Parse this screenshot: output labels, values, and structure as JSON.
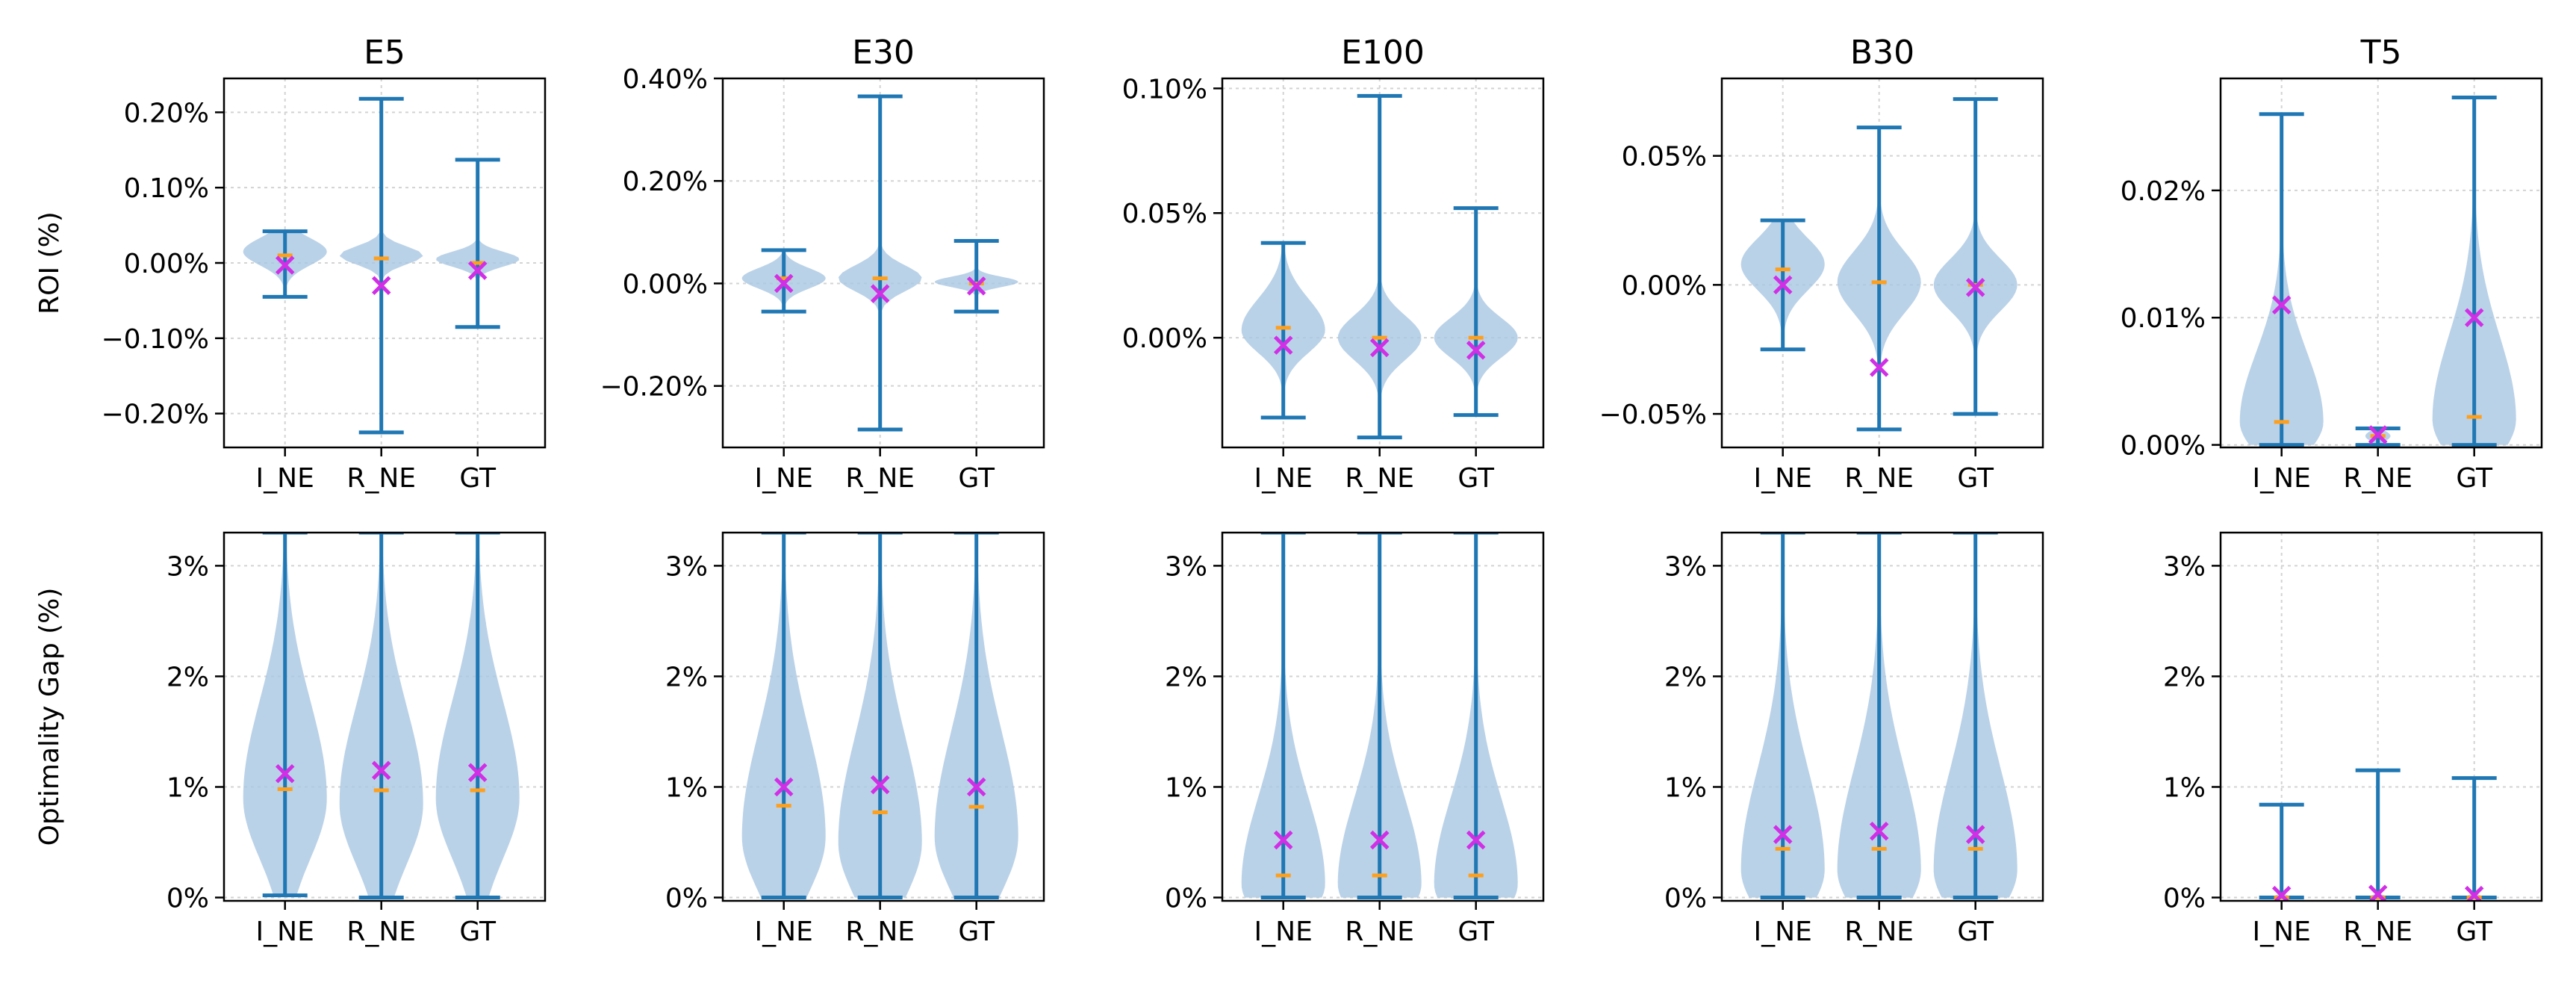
{
  "colors": {
    "violin_fill": "#a9c7e2",
    "line": "#1f77b4",
    "median": "#ff9f1a",
    "mean_marker": "#d12fe6",
    "grid": "#d3d3d3"
  },
  "row_labels": {
    "top": "ROI (%)",
    "bottom": "Optimality Gap (%)"
  },
  "chart_data": [
    {
      "type": "violin",
      "title": "E5",
      "ylabel": "ROI (%)",
      "categories": [
        "I_NE",
        "R_NE",
        "GT"
      ],
      "ylim": [
        -0.245,
        0.245
      ],
      "yticks": [
        -0.2,
        -0.1,
        0,
        0.1,
        0.2
      ],
      "yticklabels": [
        "−0.20%",
        "−0.10%",
        "0.00%",
        "0.10%",
        "0.20%"
      ],
      "series": [
        {
          "min": -0.045,
          "max": 0.042,
          "median": 0.01,
          "mean": -0.003,
          "peak": 0.015,
          "spread": 0.018,
          "skew": 0
        },
        {
          "min": -0.225,
          "max": 0.218,
          "median": 0.006,
          "mean": -0.03,
          "peak": 0.01,
          "spread": 0.012,
          "skew": 0
        },
        {
          "min": -0.085,
          "max": 0.137,
          "median": 0,
          "mean": -0.01,
          "peak": 0.005,
          "spread": 0.01,
          "skew": 0
        }
      ]
    },
    {
      "type": "violin",
      "title": "E30",
      "ylabel": "",
      "categories": [
        "I_NE",
        "R_NE",
        "GT"
      ],
      "ylim": [
        -0.32,
        0.4
      ],
      "yticks": [
        -0.2,
        0,
        0.2,
        0.4
      ],
      "yticklabels": [
        "−0.20%",
        "0.00%",
        "0.20%",
        "0.40%"
      ],
      "series": [
        {
          "min": -0.055,
          "max": 0.065,
          "median": 0.01,
          "mean": 0,
          "peak": 0.01,
          "spread": 0.02,
          "skew": 0
        },
        {
          "min": -0.285,
          "max": 0.365,
          "median": 0.01,
          "mean": -0.02,
          "peak": 0.01,
          "spread": 0.025,
          "skew": 0
        },
        {
          "min": -0.055,
          "max": 0.083,
          "median": 0,
          "mean": -0.005,
          "peak": 0.003,
          "spread": 0.01,
          "skew": 0
        }
      ]
    },
    {
      "type": "violin",
      "title": "E100",
      "ylabel": "",
      "categories": [
        "I_NE",
        "R_NE",
        "GT"
      ],
      "ylim": [
        -0.044,
        0.104
      ],
      "yticks": [
        0,
        0.05,
        0.1
      ],
      "yticklabels": [
        "0.00%",
        "0.05%",
        "0.10%"
      ],
      "series": [
        {
          "min": -0.032,
          "max": 0.038,
          "median": 0.004,
          "mean": -0.003,
          "peak": 0.003,
          "spread": 0.009,
          "skew": 0.4
        },
        {
          "min": -0.04,
          "max": 0.097,
          "median": 0,
          "mean": -0.004,
          "peak": 0,
          "spread": 0.009,
          "skew": 0
        },
        {
          "min": -0.031,
          "max": 0.052,
          "median": 0,
          "mean": -0.005,
          "peak": 0,
          "spread": 0.008,
          "skew": 0
        }
      ]
    },
    {
      "type": "violin",
      "title": "B30",
      "ylabel": "",
      "categories": [
        "I_NE",
        "R_NE",
        "GT"
      ],
      "ylim": [
        -0.063,
        0.08
      ],
      "yticks": [
        -0.05,
        0,
        0.05
      ],
      "yticklabels": [
        "−0.05%",
        "0.00%",
        "0.05%"
      ],
      "series": [
        {
          "min": -0.025,
          "max": 0.025,
          "median": 0.006,
          "mean": 0,
          "peak": 0.008,
          "spread": 0.01,
          "skew": 0
        },
        {
          "min": -0.056,
          "max": 0.061,
          "median": 0.001,
          "mean": -0.032,
          "peak": 0.001,
          "spread": 0.012,
          "skew": 0
        },
        {
          "min": -0.05,
          "max": 0.072,
          "median": 0,
          "mean": -0.001,
          "peak": 0,
          "spread": 0.01,
          "skew": 0
        }
      ]
    },
    {
      "type": "violin",
      "title": "T5",
      "ylabel": "",
      "categories": [
        "I_NE",
        "R_NE",
        "GT"
      ],
      "ylim": [
        -0.0002,
        0.0288
      ],
      "yticks": [
        0,
        0.01,
        0.02
      ],
      "yticklabels": [
        "0.00%",
        "0.01%",
        "0.02%"
      ],
      "series": [
        {
          "min": 0,
          "max": 0.026,
          "median": 0.0018,
          "mean": 0.011,
          "peak": 0.0018,
          "spread": 0.0025,
          "skew": 1.2
        },
        {
          "min": 0,
          "max": 0.0013,
          "median": 0.0007,
          "mean": 0.0008,
          "peak": 0.0007,
          "spread": 0.0004,
          "skew": 0,
          "width": 0.3
        },
        {
          "min": 0,
          "max": 0.0273,
          "median": 0.0022,
          "mean": 0.01,
          "peak": 0.002,
          "spread": 0.003,
          "skew": 1.2
        }
      ]
    },
    {
      "type": "violin",
      "title": "",
      "ylabel": "Optimality Gap (%)",
      "categories": [
        "I_NE",
        "R_NE",
        "GT"
      ],
      "ylim": [
        -0.03,
        3.3
      ],
      "yticks": [
        0,
        1,
        2,
        3
      ],
      "yticklabels": [
        "0%",
        "1%",
        "2%",
        "3%"
      ],
      "series": [
        {
          "min": 0.02,
          "max": 3.3,
          "median": 0.98,
          "mean": 1.12,
          "peak": 0.9,
          "spread": 0.55,
          "skew": 0.6
        },
        {
          "min": 0,
          "max": 3.3,
          "median": 0.97,
          "mean": 1.15,
          "peak": 0.85,
          "spread": 0.55,
          "skew": 0.6
        },
        {
          "min": 0,
          "max": 3.3,
          "median": 0.97,
          "mean": 1.13,
          "peak": 0.9,
          "spread": 0.55,
          "skew": 0.6
        }
      ]
    },
    {
      "type": "violin",
      "title": "",
      "ylabel": "",
      "categories": [
        "I_NE",
        "R_NE",
        "GT"
      ],
      "ylim": [
        -0.03,
        3.3
      ],
      "yticks": [
        0,
        1,
        2,
        3
      ],
      "yticklabels": [
        "0%",
        "1%",
        "2%",
        "3%"
      ],
      "series": [
        {
          "min": 0,
          "max": 3.3,
          "median": 0.83,
          "mean": 1,
          "peak": 0.55,
          "spread": 0.5,
          "skew": 0.9
        },
        {
          "min": 0,
          "max": 3.3,
          "median": 0.77,
          "mean": 1.02,
          "peak": 0.5,
          "spread": 0.5,
          "skew": 0.9
        },
        {
          "min": 0,
          "max": 3.3,
          "median": 0.82,
          "mean": 1,
          "peak": 0.55,
          "spread": 0.5,
          "skew": 0.9
        }
      ]
    },
    {
      "type": "violin",
      "title": "",
      "ylabel": "",
      "categories": [
        "I_NE",
        "R_NE",
        "GT"
      ],
      "ylim": [
        -0.03,
        3.3
      ],
      "yticks": [
        0,
        1,
        2,
        3
      ],
      "yticklabels": [
        "0%",
        "1%",
        "2%",
        "3%"
      ],
      "series": [
        {
          "min": 0,
          "max": 3.3,
          "median": 0.2,
          "mean": 0.52,
          "peak": 0.12,
          "spread": 0.3,
          "skew": 1.6
        },
        {
          "min": 0,
          "max": 3.3,
          "median": 0.2,
          "mean": 0.52,
          "peak": 0.12,
          "spread": 0.3,
          "skew": 1.6
        },
        {
          "min": 0,
          "max": 3.3,
          "median": 0.2,
          "mean": 0.52,
          "peak": 0.12,
          "spread": 0.3,
          "skew": 1.6
        }
      ]
    },
    {
      "type": "violin",
      "title": "",
      "ylabel": "",
      "categories": [
        "I_NE",
        "R_NE",
        "GT"
      ],
      "ylim": [
        -0.03,
        3.3
      ],
      "yticks": [
        0,
        1,
        2,
        3
      ],
      "yticklabels": [
        "0%",
        "1%",
        "2%",
        "3%"
      ],
      "series": [
        {
          "min": 0,
          "max": 3.3,
          "median": 0.44,
          "mean": 0.57,
          "peak": 0.25,
          "spread": 0.38,
          "skew": 1.4
        },
        {
          "min": 0,
          "max": 3.3,
          "median": 0.44,
          "mean": 0.6,
          "peak": 0.25,
          "spread": 0.38,
          "skew": 1.4
        },
        {
          "min": 0,
          "max": 3.3,
          "median": 0.44,
          "mean": 0.57,
          "peak": 0.25,
          "spread": 0.38,
          "skew": 1.4
        }
      ]
    },
    {
      "type": "violin",
      "title": "",
      "ylabel": "",
      "categories": [
        "I_NE",
        "R_NE",
        "GT"
      ],
      "ylim": [
        -0.03,
        3.3
      ],
      "yticks": [
        0,
        1,
        2,
        3
      ],
      "yticklabels": [
        "0%",
        "1%",
        "2%",
        "3%"
      ],
      "series": [
        {
          "min": 0,
          "max": 0.84,
          "median": 0,
          "mean": 0.02,
          "peak": 0,
          "spread": 0.02,
          "skew": 0,
          "width": 0.25
        },
        {
          "min": 0,
          "max": 1.15,
          "median": 0,
          "mean": 0.03,
          "peak": 0,
          "spread": 0.02,
          "skew": 0,
          "width": 0.25
        },
        {
          "min": 0,
          "max": 1.08,
          "median": 0,
          "mean": 0.02,
          "peak": 0,
          "spread": 0.02,
          "skew": 0,
          "width": 0.25
        }
      ]
    }
  ]
}
